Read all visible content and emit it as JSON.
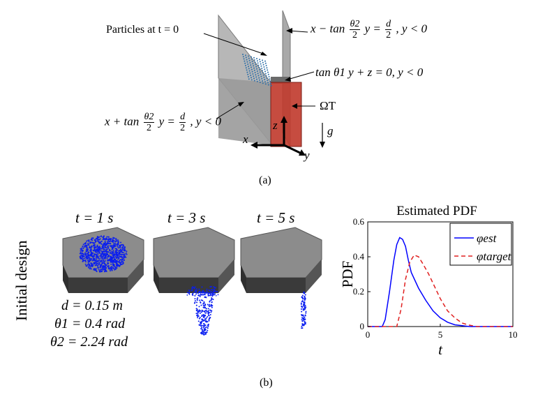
{
  "top_panel": {
    "caption": "(a)",
    "particles_label": "Particles at t = 0",
    "plane_right": {
      "lhs": "x − tan",
      "frac_num": "θ2",
      "frac_den": "2",
      "mid": "y =",
      "rhs_num": "d",
      "rhs_den": "2",
      "cond": ", y < 0"
    },
    "plane_back": "tan θ1 y + z = 0, y < 0",
    "plane_left": {
      "lhs": "x + tan",
      "frac_num": "θ2",
      "frac_den": "2",
      "mid": "y =",
      "rhs_num": "d",
      "rhs_den": "2",
      "cond": ", y < 0"
    },
    "target_region": "ΩT",
    "gravity": "g",
    "axis_x": "x",
    "axis_y": "y",
    "axis_z": "z",
    "colors": {
      "funnel": "#9a9a9a",
      "target": "#c0392b",
      "particles": "#2e6fa8"
    }
  },
  "bottom_panel": {
    "caption": "(b)",
    "side_label": "Initial design",
    "time_labels": [
      "t = 1 s",
      "t = 3 s",
      "t = 5 s"
    ],
    "params": [
      "d = 0.15 m",
      "θ1 = 0.4 rad",
      "θ2 = 2.24 rad"
    ],
    "colors": {
      "hopper_top": "#8c8c8c",
      "hopper_side": "#3a3a3a",
      "particles": "#0a1ef0"
    }
  },
  "chart_data": {
    "type": "line",
    "title": "Estimated PDF",
    "xlabel": "t",
    "ylabel": "PDF",
    "xlim": [
      0,
      10
    ],
    "ylim": [
      0,
      0.6
    ],
    "xticks": [
      0,
      5,
      10
    ],
    "yticks": [
      0,
      0.2,
      0.4,
      0.6
    ],
    "legend_position": "top-right",
    "series": [
      {
        "name": "φest",
        "color": "#0000ff",
        "dash": "solid",
        "x": [
          0,
          1.0,
          1.2,
          1.5,
          1.8,
          2.0,
          2.2,
          2.4,
          2.6,
          2.8,
          3.0,
          3.5,
          4.0,
          4.5,
          5.0,
          5.5,
          6.0,
          7.0,
          10
        ],
        "y": [
          0,
          0,
          0.04,
          0.2,
          0.38,
          0.47,
          0.51,
          0.5,
          0.46,
          0.38,
          0.31,
          0.22,
          0.15,
          0.09,
          0.05,
          0.025,
          0.01,
          0,
          0
        ]
      },
      {
        "name": "φtarget",
        "color": "#e02020",
        "dash": "dashed",
        "x": [
          0,
          2.0,
          2.3,
          2.6,
          2.9,
          3.2,
          3.5,
          3.8,
          4.2,
          4.6,
          5.0,
          5.5,
          6.0,
          6.5,
          7.0,
          7.5,
          10
        ],
        "y": [
          0,
          0,
          0.1,
          0.27,
          0.37,
          0.41,
          0.4,
          0.36,
          0.3,
          0.23,
          0.16,
          0.09,
          0.05,
          0.02,
          0.008,
          0,
          0
        ]
      }
    ]
  }
}
